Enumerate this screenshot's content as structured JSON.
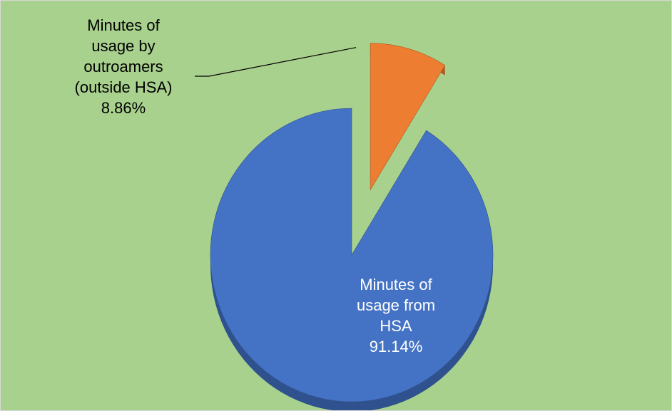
{
  "chart_data": {
    "type": "pie",
    "title": "",
    "background_color": "#a9d18e",
    "exploded_slice": "Minutes of usage by outroamers (outside HSA)",
    "slices": [
      {
        "label": "Minutes of usage from HSA",
        "label_lines": [
          "Minutes of",
          "usage from",
          "HSA"
        ],
        "value": 91.14,
        "value_label": "91.14%",
        "color": "#4472c4",
        "side_color": "#2f528f",
        "label_color": "#ffffff"
      },
      {
        "label": "Minutes of usage by outroamers (outside HSA)",
        "label_lines": [
          "Minutes of",
          "usage by",
          "outroamers",
          "(outside HSA)"
        ],
        "value": 8.86,
        "value_label": "8.86%",
        "color": "#ed7d31",
        "side_color": "#ae5a21",
        "label_color": "#000000"
      }
    ]
  }
}
